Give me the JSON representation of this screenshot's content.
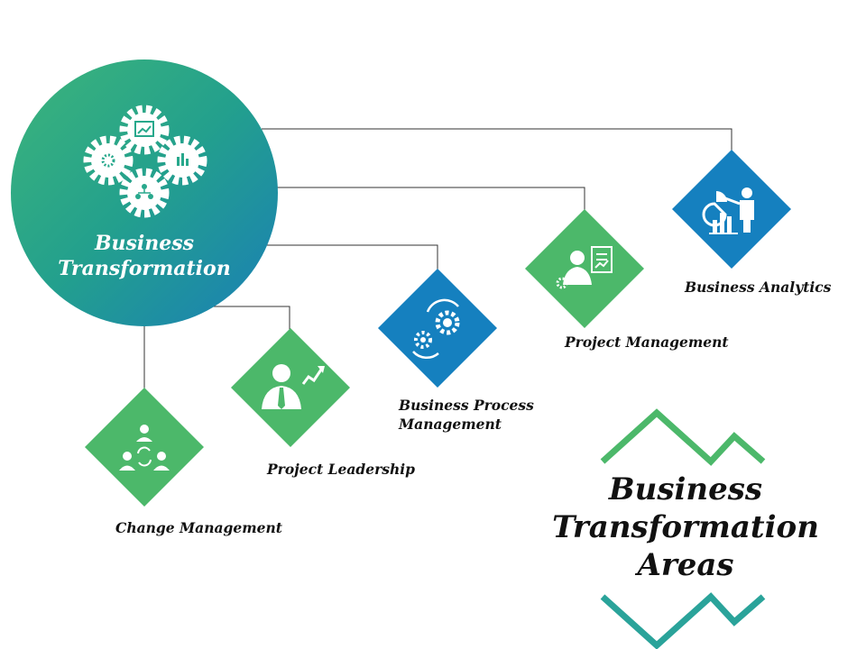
{
  "hub": {
    "title_line1": "Business",
    "title_line2": "Transformation"
  },
  "areas": [
    {
      "label": "Change Management",
      "icon": "team-cycle-icon"
    },
    {
      "label": "Project Leadership",
      "icon": "leader-growth-icon"
    },
    {
      "label_line1": "Business Process",
      "label_line2": "Management",
      "icon": "process-gears-icon"
    },
    {
      "label": "Project Management",
      "icon": "manager-checklist-icon"
    },
    {
      "label": "Business Analytics",
      "icon": "analytics-presenter-icon"
    }
  ],
  "title": {
    "line1": "Business",
    "line2": "Transformation",
    "line3": "Areas"
  },
  "colors": {
    "green": "#4cb86a",
    "blue": "#1580bf",
    "teal": "#2aa39a",
    "connector": "#333333"
  }
}
